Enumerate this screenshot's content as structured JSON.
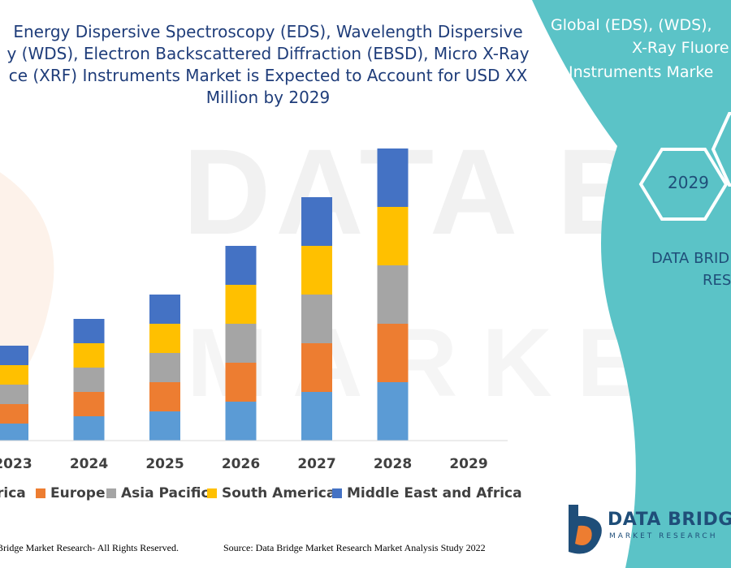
{
  "title_lines": [
    "Energy Dispersive Spectroscopy (EDS), Wavelength Dispersive",
    "y (WDS), Electron Backscattered Diffraction (EBSD), Micro X-Ray",
    "ce (XRF) Instruments Market is Expected to Account for USD XX",
    "Million by 2029"
  ],
  "panel": {
    "lines": [
      "Global (EDS), (WDS),",
      "X-Ray Fluore",
      "Instruments Marke"
    ],
    "hex_label": "2029",
    "research_lines": [
      "DATA BRID",
      "RES"
    ]
  },
  "watermark": {
    "line1": "DATA BRIDGE",
    "line2": "MARKET RESEARCH"
  },
  "chart_data": {
    "type": "bar",
    "stacked": true,
    "categories": [
      "2023",
      "2024",
      "2025",
      "2026",
      "2027",
      "2028",
      "2029"
    ],
    "series": [
      {
        "name": "rica",
        "color": "#5b9bd5",
        "values": [
          3.5,
          5.0,
          6.0,
          8.0,
          10.0,
          12.0,
          0
        ]
      },
      {
        "name": "Europe",
        "color": "#ed7d31",
        "values": [
          4.0,
          5.0,
          6.0,
          8.0,
          10.0,
          12.0,
          0
        ]
      },
      {
        "name": "Asia Pacific",
        "color": "#a5a5a5",
        "values": [
          4.0,
          5.0,
          6.0,
          8.0,
          10.0,
          12.0,
          0
        ]
      },
      {
        "name": "South America",
        "color": "#ffc000",
        "values": [
          4.0,
          5.0,
          6.0,
          8.0,
          10.0,
          12.0,
          0
        ]
      },
      {
        "name": "Middle East and Africa",
        "color": "#4472c4",
        "values": [
          4.0,
          5.0,
          6.0,
          8.0,
          10.0,
          12.0,
          0
        ]
      }
    ],
    "ylim": [
      0,
      60
    ],
    "legend_position": "bottom",
    "grid": false
  },
  "footer": {
    "left": "Bridge Market Research- All Rights Reserved.",
    "right": "Source: Data Bridge Market Research Market Analysis Study 2022"
  },
  "brand": {
    "name": "DATA BRIDGE",
    "sub": "MARKET RESEARCH"
  },
  "colors": {
    "panel": "#5bc3c7",
    "title": "#1f3d7a",
    "brand": "#1f4e79"
  }
}
